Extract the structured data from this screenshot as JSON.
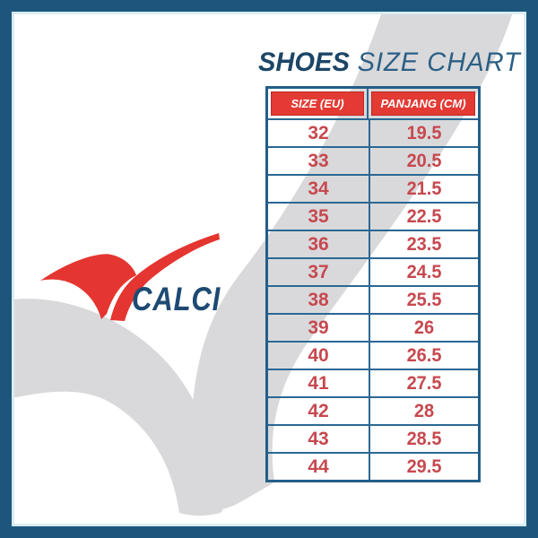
{
  "poster": {
    "title": {
      "bold_word": "SHOES",
      "light_words": "SIZE CHART"
    },
    "logo": {
      "brand": "CALCI"
    }
  },
  "table": {
    "headers": [
      "SIZE (EU)",
      "PANJANG (CM)"
    ],
    "rows": [
      [
        "32",
        "19.5"
      ],
      [
        "33",
        "20.5"
      ],
      [
        "34",
        "21.5"
      ],
      [
        "35",
        "22.5"
      ],
      [
        "36",
        "23.5"
      ],
      [
        "37",
        "24.5"
      ],
      [
        "38",
        "25.5"
      ],
      [
        "39",
        "26"
      ],
      [
        "40",
        "26.5"
      ],
      [
        "41",
        "27.5"
      ],
      [
        "42",
        "28"
      ],
      [
        "43",
        "28.5"
      ],
      [
        "44",
        "29.5"
      ]
    ]
  },
  "chart_data": {
    "type": "table",
    "title": "SHOES SIZE CHART",
    "columns": [
      "SIZE (EU)",
      "PANJANG (CM)"
    ],
    "rows": [
      [
        32,
        19.5
      ],
      [
        33,
        20.5
      ],
      [
        34,
        21.5
      ],
      [
        35,
        22.5
      ],
      [
        36,
        23.5
      ],
      [
        37,
        24.5
      ],
      [
        38,
        25.5
      ],
      [
        39,
        26
      ],
      [
        40,
        26.5
      ],
      [
        41,
        27.5
      ],
      [
        42,
        28
      ],
      [
        43,
        28.5
      ],
      [
        44,
        29.5
      ]
    ]
  },
  "colors": {
    "frame_blue": "#1d567c",
    "inner_hairline": "#d9ecf6",
    "band_gray": "#d9d9db",
    "table_line_blue": "#2c6793",
    "table_outer_blue": "#235e88",
    "header_red": "#e33a34",
    "value_red": "#c6494f",
    "title_navy": "#1c4666",
    "title_steel": "#2b5f85",
    "logo_navy": "#1d4a73",
    "logo_red": "#e43530"
  }
}
